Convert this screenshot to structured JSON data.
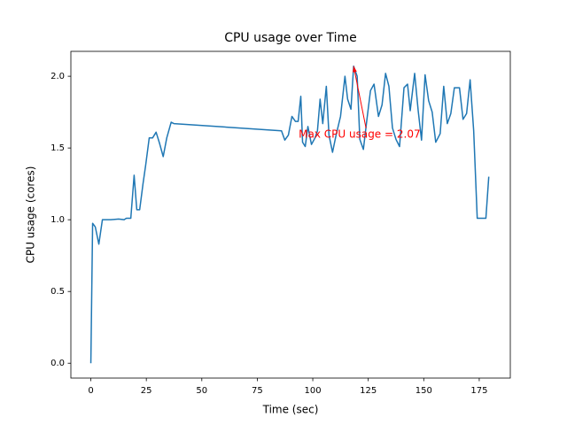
{
  "chart_data": {
    "type": "line",
    "title": "CPU usage over Time",
    "x_label": "Time (sec)",
    "y_label": "CPU usage (cores)",
    "x": [
      0,
      0.8,
      2,
      3.6,
      5.2,
      9,
      12.5,
      15,
      16,
      18,
      19.5,
      20.7,
      22,
      23.5,
      24.7,
      26.3,
      27.8,
      29.4,
      31,
      32.6,
      34.2,
      36.2,
      37.4,
      85.9,
      87.4,
      89,
      90.6,
      92.2,
      93.4,
      94.6,
      95.4,
      96.6,
      97.8,
      99.4,
      101,
      102.1,
      103.3,
      104.5,
      106.1,
      107.3,
      108.9,
      110.5,
      112.5,
      114.5,
      115.7,
      117.2,
      118.4,
      120,
      121.2,
      122.8,
      124.4,
      126,
      127.6,
      129.6,
      131.2,
      132.8,
      134.3,
      135.9,
      137.5,
      139.1,
      141.1,
      142.7,
      143.9,
      145.9,
      147.5,
      149,
      150.6,
      152.2,
      153.8,
      155.4,
      157.4,
      159,
      160.6,
      162.2,
      163.8,
      166.1,
      167.7,
      169.3,
      170.9,
      172.5,
      174.1,
      176.9,
      178,
      179.3
    ],
    "values": [
      0,
      0.975,
      0.95,
      0.83,
      1.0,
      1.0,
      1.005,
      1.0,
      1.01,
      1.01,
      1.31,
      1.07,
      1.07,
      1.25,
      1.38,
      1.57,
      1.57,
      1.61,
      1.53,
      1.44,
      1.57,
      1.68,
      1.67,
      1.62,
      1.555,
      1.59,
      1.72,
      1.685,
      1.685,
      1.86,
      1.54,
      1.51,
      1.65,
      1.525,
      1.57,
      1.62,
      1.84,
      1.67,
      1.93,
      1.59,
      1.47,
      1.59,
      1.72,
      2.0,
      1.84,
      1.77,
      2.07,
      2.0,
      1.56,
      1.49,
      1.7,
      1.9,
      1.945,
      1.72,
      1.8,
      2.02,
      1.93,
      1.64,
      1.56,
      1.51,
      1.92,
      1.945,
      1.76,
      2.02,
      1.76,
      1.555,
      2.01,
      1.83,
      1.75,
      1.54,
      1.6,
      1.93,
      1.67,
      1.74,
      1.92,
      1.92,
      1.7,
      1.74,
      1.975,
      1.62,
      1.01,
      1.01,
      1.01,
      1.3
    ],
    "color": "#1f77b4",
    "xlim": [
      -9,
      189
    ],
    "xticks": [
      0,
      25,
      50,
      75,
      100,
      125,
      150,
      175
    ],
    "ylim": [
      -0.1035,
      2.1735
    ],
    "yticks": [
      {
        "value": 0,
        "label": "0.0"
      },
      {
        "value": 0.5,
        "label": "0.5"
      },
      {
        "value": 1,
        "label": "1.0"
      },
      {
        "value": 1.5,
        "label": "1.5"
      },
      {
        "value": 2,
        "label": "2.0"
      }
    ],
    "annotation": {
      "text": "Max CPU usage = 2.07",
      "x": 118.4,
      "y": 2.07,
      "color": "#ff0000"
    }
  }
}
